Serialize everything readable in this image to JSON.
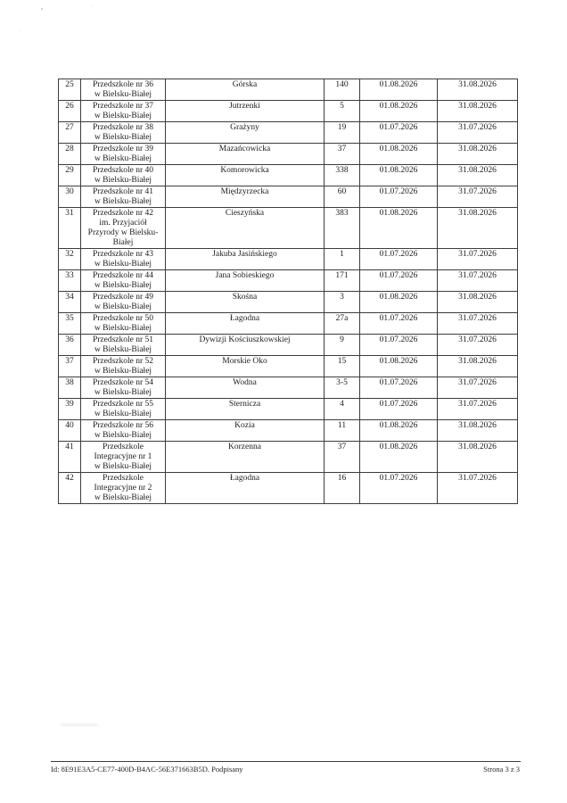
{
  "colors": {
    "paper": "#ffffff",
    "ink": "#1c1c1c",
    "table_border": "#3c3c3c"
  },
  "footer": {
    "document_id": "Id: 8E91E3A5-CE77-400D-B4AC-56E371663B5D. Podpisany",
    "page_number": "Strona 3 z 3"
  },
  "table": {
    "rows": [
      {
        "no": "25",
        "name": "Przedszkole nr 36\nw Bielsku-Białej",
        "street": "Górska",
        "number": "140",
        "date_from": "01.08.2026",
        "date_to": "31.08.2026"
      },
      {
        "no": "26",
        "name": "Przedszkole nr 37\nw Bielsku-Białej",
        "street": "Jutrzenki",
        "number": "5",
        "date_from": "01.08.2026",
        "date_to": "31.08.2026"
      },
      {
        "no": "27",
        "name": "Przedszkole nr 38\nw Bielsku-Białej",
        "street": "Grażyny",
        "number": "19",
        "date_from": "01.07.2026",
        "date_to": "31.07.2026"
      },
      {
        "no": "28",
        "name": "Przedszkole nr 39\nw Bielsku-Białej",
        "street": "Mazańcowicka",
        "number": "37",
        "date_from": "01.08.2026",
        "date_to": "31.08.2026"
      },
      {
        "no": "29",
        "name": "Przedszkole nr 40\nw Bielsku-Białej",
        "street": "Komorowicka",
        "number": "338",
        "date_from": "01.08.2026",
        "date_to": "31.08.2026"
      },
      {
        "no": "30",
        "name": "Przedszkole nr 41\nw Bielsku-Białej",
        "street": "Międzyrzecka",
        "number": "60",
        "date_from": "01.07.2026",
        "date_to": "31.07.2026"
      },
      {
        "no": "31",
        "name": "Przedszkole nr 42\nim. Przyjaciół\nPrzyrody w Bielsku-\nBiałej",
        "street": "Cieszyńska",
        "number": "383",
        "date_from": "01.08.2026",
        "date_to": "31.08.2026"
      },
      {
        "no": "32",
        "name": "Przedszkole nr 43\nw Bielsku-Białej",
        "street": "Jakuba Jasińskiego",
        "number": "1",
        "date_from": "01.07.2026",
        "date_to": "31.07.2026"
      },
      {
        "no": "33",
        "name": "Przedszkole nr 44\nw Bielsku-Białej",
        "street": "Jana Sobieskiego",
        "number": "171",
        "date_from": "01.07.2026",
        "date_to": "31.07.2026"
      },
      {
        "no": "34",
        "name": "Przedszkole nr 49\nw Bielsku-Białej",
        "street": "Skośna",
        "number": "3",
        "date_from": "01.08.2026",
        "date_to": "31.08.2026"
      },
      {
        "no": "35",
        "name": "Przedszkole nr 50\nw Bielsku-Białej",
        "street": "Łagodna",
        "number": "27a",
        "date_from": "01.07.2026",
        "date_to": "31.07.2026"
      },
      {
        "no": "36",
        "name": "Przedszkole nr 51\nw Bielsku-Białej",
        "street": "Dywizji Kościuszkowskiej",
        "number": "9",
        "date_from": "01.07.2026",
        "date_to": "31.07.2026"
      },
      {
        "no": "37",
        "name": "Przedszkole nr 52\nw Bielsku-Białej",
        "street": "Morskie Oko",
        "number": "15",
        "date_from": "01.08.2026",
        "date_to": "31.08.2026"
      },
      {
        "no": "38",
        "name": "Przedszkole nr 54\nw Bielsku-Białej",
        "street": "Wodna",
        "number": "3-5",
        "date_from": "01.07.2026",
        "date_to": "31.07.2026"
      },
      {
        "no": "39",
        "name": "Przedszkole nr 55\nw Bielsku-Białej",
        "street": "Sternicza",
        "number": "4",
        "date_from": "01.07.2026",
        "date_to": "31.07.2026"
      },
      {
        "no": "40",
        "name": "Przedszkole nr 56\nw Bielsku-Białej",
        "street": "Kozia",
        "number": "11",
        "date_from": "01.08.2026",
        "date_to": "31.08.2026"
      },
      {
        "no": "41",
        "name": "Przedszkole\nIntegracyjne nr 1\nw Bielsku-Białej",
        "street": "Korzenna",
        "number": "37",
        "date_from": "01.08.2026",
        "date_to": "31.08.2026"
      },
      {
        "no": "42",
        "name": "Przedszkole\nIntegracyjne nr 2\nw Bielsku-Białej",
        "street": "Łagodna",
        "number": "16",
        "date_from": "01.07.2026",
        "date_to": "31.07.2026"
      }
    ]
  }
}
